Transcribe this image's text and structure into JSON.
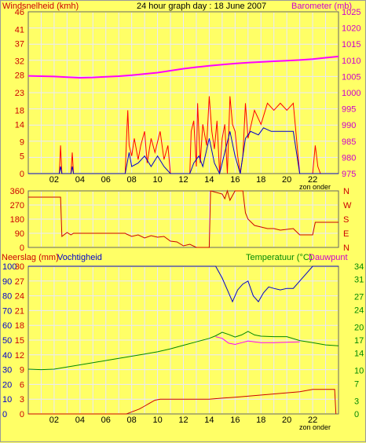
{
  "header": {
    "left_label": "Windsnelheid (kmh)",
    "title": "24 hour graph day : 18 June 2007",
    "right_label": "Barometer (mb)"
  },
  "panel2": {
    "dir_labels": [
      "N",
      "W",
      "S",
      "E",
      "N"
    ]
  },
  "panel3": {
    "left_label": "Neerslag (mm)",
    "left_label2": "Vochtigheid",
    "right_label": "Temperatuur (°C)",
    "right_label2": "Dauwpunt"
  },
  "footer": {
    "sun_note": "zon onder"
  },
  "colors": {
    "background": "#ffff66",
    "grid": "#e8e8ff",
    "wind_gust": "#ff0000",
    "wind_avg": "#0000cc",
    "barometer": "#ff00ff",
    "direction": "#cc0000",
    "rain": "#cc0000",
    "humidity": "#0000cc",
    "temperature": "#008800",
    "dewpoint": "#ff00ff",
    "axis_left_text": "#cc0000",
    "axis_right_text": "#cc00cc",
    "temp_text": "#008800"
  },
  "chart_data": [
    {
      "type": "line",
      "title": "24 hour graph day : 18 June 2007",
      "xlabel": "",
      "x_ticks": [
        "02",
        "04",
        "06",
        "08",
        "10",
        "12",
        "14",
        "16",
        "18",
        "20",
        "22"
      ],
      "xlim": [
        0,
        24
      ],
      "y_left": {
        "label": "Windsnelheid (kmh)",
        "ticks": [
          0,
          5,
          9,
          14,
          18,
          23,
          28,
          32,
          37,
          41,
          46
        ],
        "ylim": [
          0,
          46
        ]
      },
      "y_right": {
        "label": "Barometer (mb)",
        "ticks": [
          975,
          980,
          985,
          990,
          995,
          1000,
          1005,
          1010,
          1015,
          1020,
          1025
        ],
        "ylim": [
          975,
          1025
        ]
      },
      "series": [
        {
          "name": "Windsnelheid",
          "axis": "left",
          "role": "gust",
          "x": [
            0,
            2.4,
            2.5,
            2.6,
            2.7,
            3.3,
            3.4,
            3.5,
            7.5,
            7.6,
            7.7,
            7.8,
            8.0,
            8.2,
            8.5,
            8.7,
            9.0,
            9.2,
            9.5,
            9.8,
            10.2,
            10.5,
            10.8,
            11.0,
            12.5,
            12.6,
            12.8,
            13.0,
            13.1,
            13.3,
            13.5,
            13.8,
            14.0,
            14.2,
            14.4,
            14.6,
            14.8,
            15.0,
            15.2,
            15.4,
            15.6,
            15.8,
            16.0,
            16.2,
            16.4,
            16.6,
            16.8,
            17.0,
            17.5,
            18.0,
            18.5,
            19.0,
            19.5,
            20.0,
            20.5,
            21.0,
            21.2,
            21.4,
            22.0,
            22.2,
            22.4,
            22.6,
            24
          ],
          "y": [
            0,
            0,
            8,
            0,
            0,
            0,
            6,
            0,
            0,
            10,
            18,
            8,
            5,
            10,
            4,
            8,
            12,
            3,
            10,
            6,
            12,
            4,
            8,
            0,
            0,
            12,
            15,
            2,
            20,
            3,
            14,
            8,
            22,
            12,
            7,
            15,
            0,
            10,
            14,
            0,
            22,
            14,
            12,
            5,
            0,
            5,
            20,
            10,
            18,
            14,
            20,
            18,
            20,
            18,
            20,
            0,
            0,
            0,
            0,
            8,
            2,
            0,
            0
          ]
        },
        {
          "name": "Windsnelheid",
          "axis": "left",
          "role": "average",
          "x": [
            0,
            2.4,
            2.5,
            2.6,
            3.3,
            3.4,
            3.5,
            7.5,
            7.8,
            8.0,
            8.5,
            9.0,
            9.5,
            10.0,
            10.5,
            11.0,
            12.5,
            12.8,
            13.2,
            13.5,
            14.0,
            14.4,
            14.8,
            15.2,
            15.6,
            16.0,
            16.4,
            16.8,
            17.2,
            17.8,
            18.2,
            18.8,
            19.5,
            20.5,
            21.0,
            24
          ],
          "y": [
            0,
            0,
            2,
            0,
            0,
            2,
            0,
            0,
            6,
            2,
            3,
            5,
            2,
            5,
            2,
            0,
            0,
            3,
            5,
            2,
            10,
            3,
            0,
            6,
            12,
            5,
            0,
            10,
            12,
            11,
            13,
            12,
            12,
            12,
            0,
            0
          ]
        },
        {
          "name": "Barometer",
          "axis": "right",
          "x": [
            0,
            1,
            2,
            3,
            4,
            5,
            6,
            7,
            8,
            9,
            10,
            11,
            12,
            13,
            14,
            15,
            16,
            17,
            18,
            19,
            20,
            21,
            22,
            23,
            24
          ],
          "y": [
            1005.2,
            1005.1,
            1005.0,
            1004.8,
            1004.6,
            1004.7,
            1004.9,
            1005.1,
            1005.4,
            1005.8,
            1006.2,
            1006.8,
            1007.4,
            1007.9,
            1008.3,
            1008.7,
            1009.0,
            1009.3,
            1009.5,
            1009.7,
            1009.9,
            1010.1,
            1010.4,
            1010.8,
            1011.2
          ]
        }
      ]
    },
    {
      "type": "line",
      "x_ticks": [],
      "xlim": [
        0,
        24
      ],
      "y_left": {
        "ticks": [
          0,
          90,
          180,
          270,
          360
        ],
        "ylim": [
          0,
          360
        ]
      },
      "y_right": {
        "ticks": [
          "N",
          "W",
          "S",
          "E",
          "N"
        ]
      },
      "series": [
        {
          "name": "Windrichting",
          "x": [
            0,
            2.5,
            2.6,
            3.0,
            3.3,
            3.5,
            5.0,
            6.0,
            7.5,
            7.6,
            8.0,
            8.5,
            9.0,
            9.5,
            10.0,
            10.5,
            11.0,
            11.5,
            12.0,
            12.5,
            13.0,
            14.0,
            14.1,
            15.0,
            15.2,
            15.4,
            15.6,
            15.8,
            16.0,
            16.6,
            16.8,
            17.0,
            17.5,
            18.0,
            18.5,
            19.0,
            19.5,
            20.0,
            20.5,
            21.0,
            22.0,
            22.2,
            24
          ],
          "y": [
            320,
            320,
            70,
            95,
            80,
            90,
            90,
            90,
            90,
            85,
            70,
            80,
            60,
            75,
            65,
            70,
            40,
            35,
            10,
            20,
            0,
            0,
            360,
            340,
            310,
            360,
            300,
            330,
            360,
            360,
            220,
            180,
            140,
            130,
            120,
            120,
            110,
            115,
            120,
            80,
            80,
            160,
            160
          ]
        }
      ]
    },
    {
      "type": "line",
      "x_ticks": [
        "02",
        "04",
        "06",
        "08",
        "10",
        "12",
        "14",
        "16",
        "18",
        "20",
        "22"
      ],
      "xlim": [
        0,
        24
      ],
      "y_left": {
        "label": "Neerslag (mm) / Vochtigheid",
        "ticks": [
          "0 0",
          "10 3",
          "20 6",
          "30 9",
          "40 12",
          "50 15",
          "60 18",
          "70 21",
          "80 24",
          "90 27",
          "100 30"
        ],
        "rain_ylim": [
          0,
          30
        ],
        "humidity_ylim": [
          0,
          100
        ]
      },
      "y_right": {
        "label": "Temperatuur (°C) / Dauwpunt",
        "ticks": [
          0,
          3,
          7,
          10,
          14,
          17,
          20,
          24,
          27,
          31,
          34
        ],
        "ylim": [
          0,
          34
        ]
      },
      "series": [
        {
          "name": "Neerslag",
          "axis": "left-rain",
          "x": [
            0,
            7.6,
            7.8,
            8.2,
            8.6,
            9.0,
            9.4,
            9.8,
            10.2,
            10.6,
            11.0,
            14.0,
            15.0,
            16.0,
            21.0,
            22.0,
            23.5,
            23.7,
            23.8
          ],
          "y": [
            0,
            0,
            0.2,
            0.6,
            1.0,
            1.6,
            2.2,
            2.8,
            3.0,
            3.0,
            3.0,
            3.0,
            3.2,
            3.4,
            4.5,
            5.0,
            5.0,
            5.0,
            0
          ]
        },
        {
          "name": "Vochtigheid",
          "axis": "left-humidity",
          "x": [
            0,
            14.5,
            15.0,
            15.4,
            15.8,
            16.2,
            16.6,
            17.0,
            17.4,
            17.8,
            18.2,
            18.6,
            19.0,
            19.5,
            20.0,
            20.5,
            21.0,
            21.5,
            22.0,
            24
          ],
          "y": [
            100,
            100,
            92,
            84,
            76,
            84,
            88,
            90,
            80,
            76,
            82,
            86,
            85,
            84,
            85,
            85,
            90,
            95,
            100,
            100
          ]
        },
        {
          "name": "Temperatuur",
          "axis": "right",
          "x": [
            0,
            1,
            2,
            3,
            4,
            5,
            6,
            7,
            8,
            9,
            10,
            11,
            12,
            13,
            14,
            14.5,
            15,
            15.5,
            16,
            16.5,
            17,
            17.5,
            18,
            19,
            20,
            21,
            22,
            23,
            24
          ],
          "y": [
            10.3,
            10.2,
            10.3,
            10.8,
            11.3,
            11.8,
            12.3,
            12.8,
            13.3,
            13.8,
            14.3,
            15.0,
            15.8,
            16.6,
            17.4,
            18.0,
            18.8,
            18.3,
            17.7,
            18.2,
            19.0,
            18.2,
            17.9,
            17.8,
            17.8,
            16.9,
            16.4,
            15.9,
            15.7
          ]
        },
        {
          "name": "Dauwpunt",
          "axis": "right",
          "x": [
            14.5,
            15,
            15.5,
            16,
            16.5,
            17,
            17.5,
            18,
            19,
            20,
            21
          ],
          "y": [
            17.8,
            17.4,
            16.3,
            16.0,
            16.4,
            16.8,
            16.6,
            16.4,
            16.4,
            16.5,
            16.6
          ]
        }
      ]
    }
  ]
}
